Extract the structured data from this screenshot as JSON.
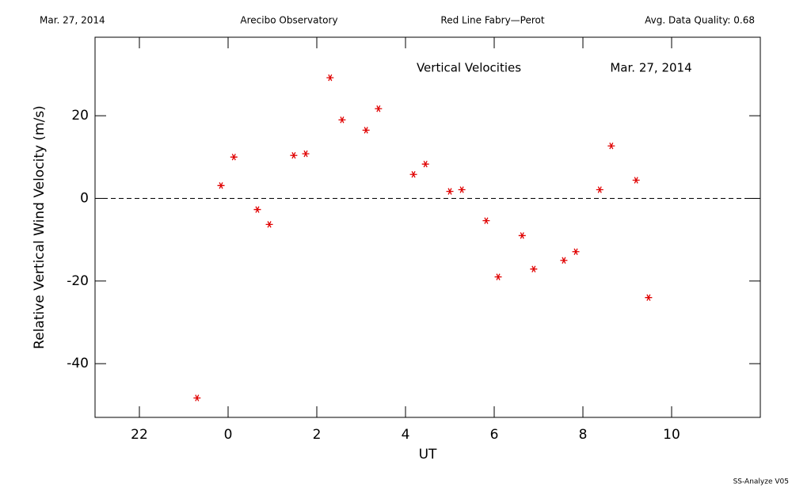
{
  "header": {
    "date": "Mar. 27, 2014",
    "site": "Arecibo Observatory",
    "instrument": "Red Line Fabry—Perot",
    "quality": "Avg. Data Quality: 0.68"
  },
  "footer": "SS-Analyze V05",
  "chart_data": {
    "type": "scatter",
    "title": "Vertical Velocities",
    "subtitle": "Mar. 27, 2014",
    "x_label": "UT",
    "y_label": "Relative Vertical Wind Velocity (m/s)",
    "color": "#e00000",
    "marker": "asterisk",
    "zero_line": true,
    "xlim": [
      -3,
      12
    ],
    "xticks": [
      {
        "value": -2,
        "label": "22"
      },
      0,
      2,
      4,
      6,
      8,
      10
    ],
    "ylim": [
      -53,
      39
    ],
    "yticks": [
      -40,
      -20,
      0,
      20
    ],
    "x": [
      -0.7,
      -0.16,
      0.13,
      0.66,
      0.93,
      1.48,
      1.75,
      2.3,
      2.57,
      3.11,
      3.39,
      4.18,
      4.45,
      5.0,
      5.27,
      5.82,
      6.09,
      6.63,
      6.89,
      7.57,
      7.84,
      8.38,
      8.64,
      9.2,
      9.48
    ],
    "values": [
      -48.3,
      3.1,
      10.0,
      -2.7,
      -6.3,
      10.4,
      10.8,
      29.2,
      19.0,
      16.5,
      21.7,
      5.8,
      8.3,
      1.7,
      2.1,
      -5.4,
      -19.0,
      -9.0,
      -17.1,
      -15.0,
      -12.9,
      2.1,
      12.7,
      4.4,
      -24.0
    ]
  }
}
